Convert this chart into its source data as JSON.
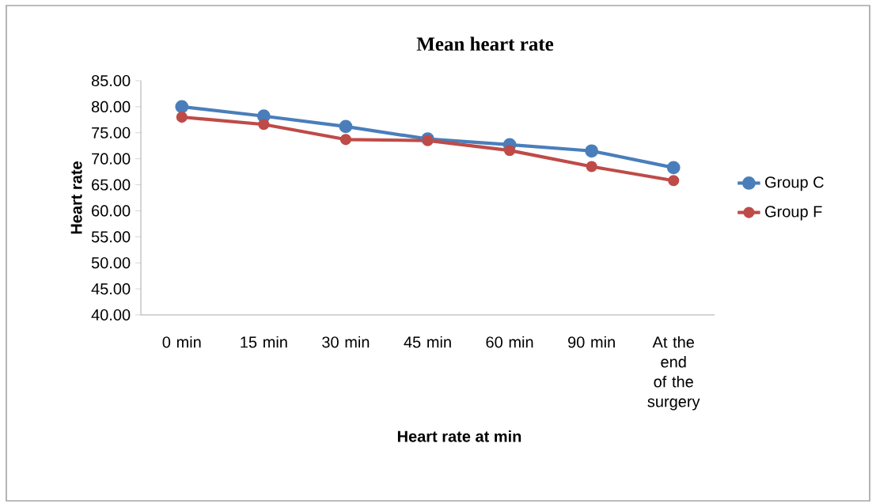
{
  "chart_data": {
    "type": "line",
    "title": "Mean heart rate",
    "xlabel": "Heart rate at min",
    "ylabel": "Heart rate",
    "categories": [
      "0 min",
      "15 min",
      "30 min",
      "45 min",
      "60 min",
      "90 min",
      "At the end of the surgery"
    ],
    "series": [
      {
        "name": "Group C",
        "color": "#4a7ebb",
        "values": [
          80.0,
          78.2,
          76.2,
          73.8,
          72.7,
          71.5,
          68.3
        ]
      },
      {
        "name": "Group F",
        "color": "#be4b48",
        "values": [
          78.0,
          76.6,
          73.7,
          73.5,
          71.6,
          68.5,
          65.8
        ]
      }
    ],
    "ylim": [
      40,
      85
    ],
    "yticks": [
      {
        "value": 40,
        "label": "40.00"
      },
      {
        "value": 45,
        "label": "45.00"
      },
      {
        "value": 50,
        "label": "50.00"
      },
      {
        "value": 55,
        "label": "55.00"
      },
      {
        "value": 60,
        "label": "60.00"
      },
      {
        "value": 65,
        "label": "65.00"
      },
      {
        "value": 70,
        "label": "70.00"
      },
      {
        "value": 75,
        "label": "75.00"
      },
      {
        "value": 80,
        "label": "80.00"
      },
      {
        "value": 85,
        "label": "85.00"
      }
    ],
    "legend": "right",
    "marker": "circle",
    "line_style": "solid",
    "grid": false
  }
}
